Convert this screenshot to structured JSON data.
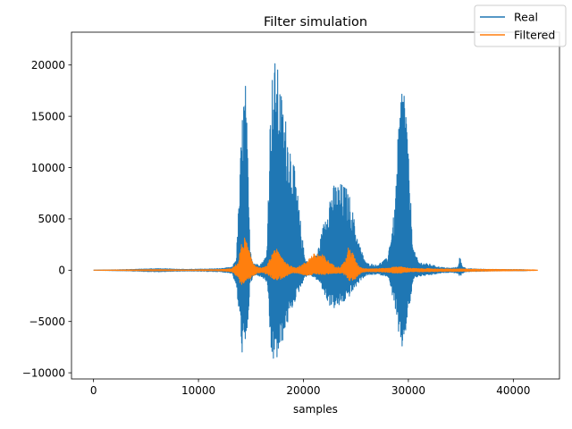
{
  "chart_data": {
    "type": "line",
    "title": "Filter simulation",
    "xlabel": "samples",
    "ylabel": "",
    "xlim": [
      -2100,
      44400
    ],
    "ylim": [
      -10600,
      23200
    ],
    "xticks": [
      0,
      10000,
      20000,
      30000,
      40000
    ],
    "xtick_labels": [
      "0",
      "10000",
      "20000",
      "30000",
      "40000"
    ],
    "yticks": [
      -10000,
      -5000,
      0,
      5000,
      10000,
      15000,
      20000
    ],
    "ytick_labels": [
      "−10000",
      "−5000",
      "0",
      "5000",
      "10000",
      "15000",
      "20000"
    ],
    "grid": false,
    "legend_position": "top-right",
    "series": [
      {
        "name": "Real",
        "color": "#1f77b4",
        "envelope": {
          "x": [
            0,
            3000,
            6000,
            9000,
            12000,
            13200,
            13600,
            13900,
            14100,
            14300,
            14500,
            14700,
            14900,
            15200,
            15600,
            16000,
            16500,
            16900,
            17200,
            17500,
            17800,
            18100,
            18400,
            18700,
            19000,
            19400,
            19800,
            20100,
            20500,
            21000,
            21500,
            22000,
            22500,
            23000,
            23500,
            24000,
            24500,
            25000,
            25500,
            26000,
            27000,
            28000,
            28700,
            29100,
            29400,
            29600,
            29800,
            30100,
            30500,
            31000,
            32000,
            33000,
            34000,
            34700,
            34900,
            35100,
            35500,
            37000,
            39000,
            41000,
            41600
          ],
          "upper": [
            0,
            60,
            160,
            80,
            150,
            300,
            1200,
            8000,
            14000,
            17500,
            18500,
            11000,
            2500,
            800,
            600,
            700,
            1500,
            18000,
            20800,
            20000,
            18000,
            16000,
            14500,
            13000,
            11000,
            8000,
            4000,
            1500,
            700,
            900,
            2500,
            5000,
            7500,
            8500,
            8500,
            8300,
            7000,
            4000,
            2000,
            700,
            500,
            1200,
            6000,
            15000,
            18800,
            19000,
            16000,
            9000,
            2000,
            800,
            600,
            300,
            200,
            300,
            1400,
            500,
            150,
            100,
            60,
            60,
            0
          ],
          "lower": [
            0,
            -60,
            -160,
            -80,
            -150,
            -300,
            -1800,
            -5000,
            -8000,
            -8500,
            -8000,
            -5000,
            -1500,
            -600,
            -500,
            -700,
            -1200,
            -8500,
            -9200,
            -8800,
            -8000,
            -6500,
            -5500,
            -4500,
            -3500,
            -2500,
            -1500,
            -700,
            -500,
            -700,
            -1200,
            -2500,
            -3500,
            -3800,
            -3500,
            -3000,
            -2400,
            -1600,
            -900,
            -500,
            -400,
            -600,
            -3500,
            -7500,
            -7800,
            -7000,
            -5500,
            -3500,
            -800,
            -600,
            -500,
            -300,
            -200,
            -300,
            -700,
            -300,
            -150,
            -100,
            -60,
            -60,
            0
          ]
        }
      },
      {
        "name": "Filtered",
        "color": "#ff7f0e",
        "envelope": {
          "x": [
            0,
            3000,
            6000,
            9000,
            12000,
            13200,
            13800,
            14000,
            14300,
            14500,
            14800,
            15200,
            15600,
            16000,
            16500,
            16900,
            17200,
            17500,
            17800,
            18200,
            18600,
            19000,
            19400,
            19800,
            20200,
            20600,
            21000,
            21500,
            22000,
            22500,
            23000,
            23500,
            24000,
            24300,
            24600,
            24900,
            25200,
            25600,
            26000,
            27000,
            28000,
            28800,
            29200,
            29500,
            29800,
            30200,
            31000,
            32000,
            33000,
            34000,
            35000,
            36000,
            38000,
            40000,
            42000,
            42300
          ],
          "upper": [
            0,
            30,
            60,
            30,
            60,
            150,
            800,
            2200,
            3300,
            3100,
            2000,
            800,
            300,
            200,
            400,
            1300,
            2300,
            2000,
            1600,
            1000,
            500,
            300,
            300,
            500,
            800,
            1300,
            1600,
            1700,
            1400,
            800,
            400,
            300,
            1000,
            2300,
            2000,
            1200,
            500,
            200,
            150,
            150,
            200,
            350,
            350,
            300,
            250,
            200,
            150,
            150,
            120,
            120,
            120,
            100,
            80,
            60,
            30,
            0
          ],
          "lower": [
            0,
            -30,
            -60,
            -30,
            -60,
            -150,
            -800,
            -1500,
            -1300,
            -1100,
            -900,
            -600,
            -300,
            -200,
            -400,
            -700,
            -900,
            -1000,
            -900,
            -700,
            -500,
            -300,
            -300,
            -400,
            -500,
            -500,
            -400,
            -400,
            -450,
            -350,
            -300,
            -300,
            -500,
            -1000,
            -1100,
            -900,
            -500,
            -200,
            -150,
            -150,
            -200,
            -300,
            -300,
            -250,
            -200,
            -150,
            -150,
            -150,
            -120,
            -120,
            -120,
            -100,
            -80,
            -60,
            -30,
            0
          ]
        }
      }
    ]
  }
}
